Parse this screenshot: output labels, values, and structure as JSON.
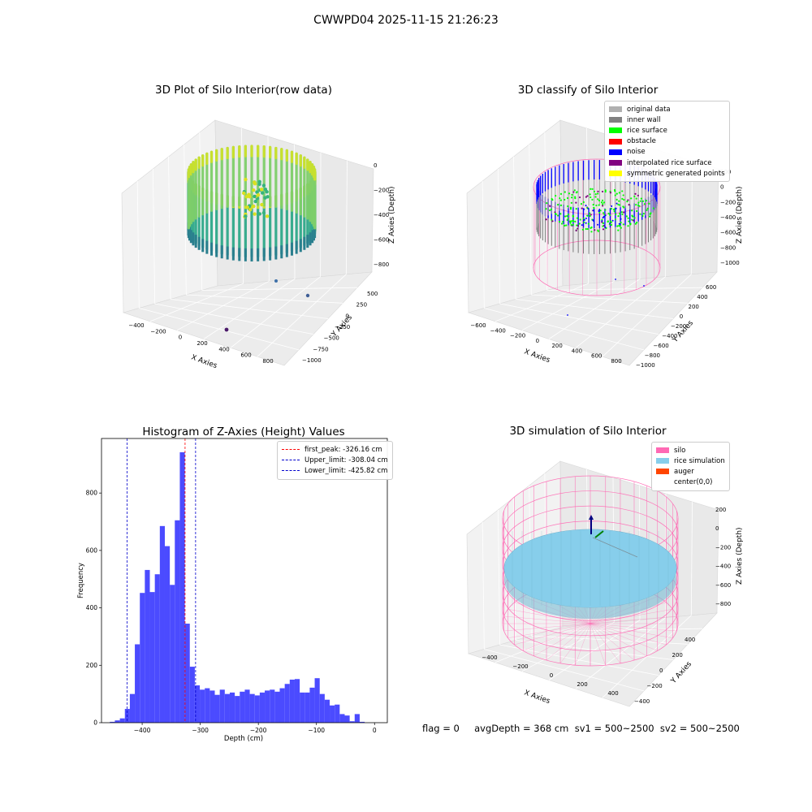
{
  "figure": {
    "title": "CWWPD04 2025-11-15 21:26:23",
    "status_line": "flag = 0     avgDepth = 368 cm  sv1 = 500~2500  sv2 = 500~2500"
  },
  "colors": {
    "hist_bar": "#4b4bff",
    "first_peak": "#ff0000",
    "limits": "#0000cc",
    "silo": "#ff69b4",
    "rice_sim": "#87ceeb",
    "auger": "#ff4500",
    "original": "#b0b0b0",
    "inner_wall": "#808080",
    "rice_surface": "#00ff00",
    "obstacle": "#ff0000",
    "noise": "#0000ff",
    "interp": "#800080",
    "symmetric": "#ffff00"
  },
  "panels": {
    "raw": {
      "title": "3D Plot of Silo Interior(row data)",
      "xlabel": "X Axies",
      "ylabel": "Y Axies",
      "zlabel": "Z Axies (Depth)",
      "xticks": [
        "−400",
        "−200",
        "0",
        "200",
        "400",
        "600",
        "800"
      ],
      "yticks": [
        "500",
        "250",
        "0",
        "−250",
        "−500",
        "−750",
        "−1000"
      ],
      "zticks": [
        "0",
        "−200",
        "−400",
        "−600",
        "−800"
      ]
    },
    "classify": {
      "title": "3D classify of Silo Interior",
      "xlabel": "X Axies",
      "ylabel": "Y Axies",
      "zlabel": "Z Axies (Depth)",
      "xticks": [
        "−600",
        "−400",
        "−200",
        "0",
        "200",
        "400",
        "600",
        "800"
      ],
      "yticks": [
        "600",
        "400",
        "200",
        "0",
        "−200",
        "−400",
        "−600",
        "−800",
        "−1000"
      ],
      "zticks": [
        "200",
        "0",
        "−200",
        "−400",
        "−600",
        "−800",
        "−1000"
      ],
      "legend": [
        {
          "label": "original data",
          "color": "#b0b0b0"
        },
        {
          "label": "inner wall",
          "color": "#808080"
        },
        {
          "label": "rice surface",
          "color": "#00ff00"
        },
        {
          "label": "obstacle",
          "color": "#ff0000"
        },
        {
          "label": "noise",
          "color": "#0000ff"
        },
        {
          "label": "interpolated rice surface",
          "color": "#800080"
        },
        {
          "label": "symmetric generated points",
          "color": "#ffff00"
        }
      ]
    },
    "simulation": {
      "title": "3D simulation of Silo Interior",
      "xlabel": "X Axies",
      "ylabel": "Y Axies",
      "zlabel": "Z Axies (Depth)",
      "xticks": [
        "−400",
        "−200",
        "0",
        "200",
        "400"
      ],
      "yticks": [
        "400",
        "200",
        "0",
        "−200",
        "−400"
      ],
      "zticks": [
        "200",
        "0",
        "−200",
        "−400",
        "−600",
        "−800"
      ],
      "legend": [
        {
          "label": "silo",
          "color": "#ff69b4"
        },
        {
          "label": "rice simulation",
          "color": "#87ceeb"
        },
        {
          "label": "auger",
          "color": "#ff4500"
        },
        {
          "label": "center(0,0)",
          "color": "#ffffff"
        }
      ]
    }
  },
  "chart_data": {
    "type": "bar",
    "title": "Histogram of Z-Axies (Height) Values",
    "xlabel": "Depth (cm)",
    "ylabel": "Frequency",
    "xlim": [
      -470,
      22
    ],
    "ylim": [
      0,
      990
    ],
    "xticks": [
      -400,
      -300,
      -200,
      -100,
      0
    ],
    "yticks": [
      0,
      200,
      400,
      600,
      800
    ],
    "bin_width": 8.6,
    "bins_start": [
      -455.6,
      -447.0,
      -438.4,
      -429.8,
      -421.2,
      -412.6,
      -404.0,
      -395.4,
      -386.8,
      -378.2,
      -369.6,
      -361.0,
      -352.4,
      -343.8,
      -335.2,
      -326.6,
      -318.0,
      -309.4,
      -300.8,
      -292.2,
      -283.6,
      -275.0,
      -266.4,
      -257.8,
      -249.2,
      -240.6,
      -232.0,
      -223.4,
      -214.8,
      -206.2,
      -197.6,
      -189.0,
      -180.4,
      -171.8,
      -163.2,
      -154.6,
      -146.0,
      -137.4,
      -128.8,
      -120.2,
      -111.6,
      -103.0,
      -94.4,
      -85.8,
      -77.2,
      -68.6,
      -60.0,
      -51.4,
      -42.8,
      -34.2,
      -25.6,
      -17.0,
      -8.4
    ],
    "counts": [
      3,
      8,
      15,
      48,
      100,
      273,
      452,
      532,
      455,
      517,
      685,
      615,
      480,
      705,
      942,
      345,
      195,
      130,
      115,
      120,
      112,
      97,
      115,
      100,
      105,
      93,
      108,
      115,
      100,
      95,
      105,
      112,
      115,
      108,
      120,
      135,
      150,
      152,
      105,
      105,
      122,
      155,
      100,
      80,
      60,
      63,
      30,
      25,
      5,
      30,
      3,
      0,
      0
    ],
    "lines": [
      {
        "label": "first_peak: -326.16 cm",
        "x": -326.16,
        "color": "#ff0000"
      },
      {
        "label": "Upper_limit: -308.04 cm",
        "x": -308.04,
        "color": "#0000cc"
      },
      {
        "label": "Lower_limit: -425.82 cm",
        "x": -425.82,
        "color": "#0000cc"
      }
    ]
  }
}
